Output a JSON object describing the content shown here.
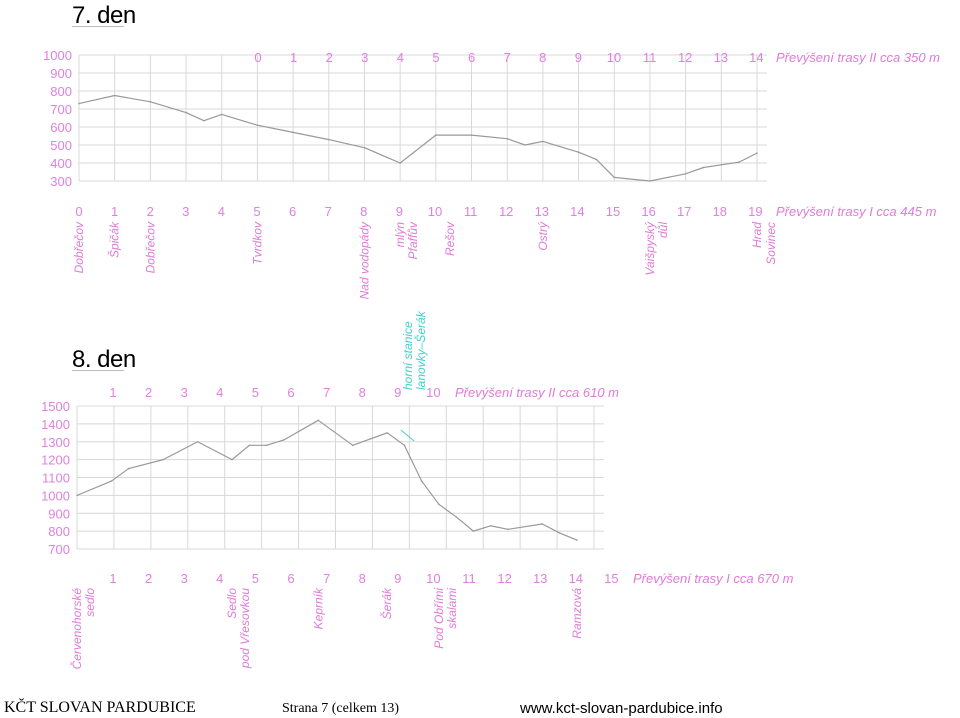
{
  "days": [
    {
      "title": "7. den"
    },
    {
      "title": "8. den"
    }
  ],
  "colors": {
    "axis_label": "#e080e0",
    "grid": "#d8d8d8",
    "profile_line": "#999999",
    "place_label": "#e07ad8",
    "teal_label": "#40d0d0"
  },
  "chart_data": [
    {
      "type": "line",
      "title": "",
      "ylabel": "",
      "ylim": [
        300,
        1000
      ],
      "yticks": [
        "300",
        "400",
        "500",
        "600",
        "700",
        "800",
        "900",
        "1000"
      ],
      "x_top_ticks": [
        "0",
        "1",
        "2",
        "3",
        "4",
        "5",
        "6",
        "7",
        "8",
        "9",
        "10",
        "11",
        "12",
        "13",
        "14"
      ],
      "x_bottom_ticks": [
        "0",
        "1",
        "2",
        "3",
        "4",
        "5",
        "6",
        "7",
        "8",
        "9",
        "10",
        "11",
        "12",
        "13",
        "14",
        "15",
        "16",
        "17",
        "18",
        "19"
      ],
      "xlim": [
        0,
        19
      ],
      "top_note": "Převýšení trasy II cca 350 m",
      "bottom_note": "Převýšení trasy I cca 445 m",
      "series": [
        {
          "x": [
            0,
            1,
            2,
            3,
            3.5,
            4,
            5,
            6,
            7,
            8,
            9,
            10,
            11,
            12,
            12.5,
            13,
            14,
            14.5,
            15,
            16,
            17,
            17.5,
            18,
            18.5,
            19
          ],
          "y": [
            730,
            775,
            740,
            680,
            635,
            670,
            610,
            570,
            530,
            485,
            400,
            555,
            555,
            535,
            500,
            520,
            460,
            420,
            320,
            300,
            340,
            375,
            390,
            405,
            455
          ]
        }
      ],
      "place_labels": [
        {
          "x": 0,
          "text": "Dobřečov"
        },
        {
          "x": 1,
          "text": "Špičák"
        },
        {
          "x": 2,
          "text": "Dobřečov"
        },
        {
          "x": 5,
          "text": "Tvrdkov"
        },
        {
          "x": 8,
          "text": "Nad vodopády"
        },
        {
          "x": 9,
          "text": "Pfaffův"
        },
        {
          "x": 9,
          "text": "mlýn"
        },
        {
          "x": 10,
          "text": "Rešov"
        },
        {
          "x": 13,
          "text": "Ostrý"
        },
        {
          "x": 16,
          "text": "Vaišpyský"
        },
        {
          "x": 16,
          "text": "důl"
        },
        {
          "x": 19,
          "text": "Hrad"
        },
        {
          "x": 19,
          "text": "Sovinec"
        }
      ]
    },
    {
      "type": "line",
      "title": "",
      "ylabel": "",
      "ylim": [
        700,
        1500
      ],
      "yticks": [
        "700",
        "800",
        "900",
        "1000",
        "1100",
        "1200",
        "1300",
        "1400",
        "1500"
      ],
      "x_top_ticks": [
        "1",
        "2",
        "3",
        "4",
        "5",
        "6",
        "7",
        "8",
        "9",
        "10"
      ],
      "x_bottom_ticks": [
        "1",
        "2",
        "3",
        "4",
        "5",
        "6",
        "7",
        "8",
        "9",
        "10",
        "11",
        "12",
        "13",
        "14",
        "15"
      ],
      "xlim": [
        0,
        15
      ],
      "top_note": "Převýšení trasy II cca 610 m",
      "bottom_note": "Převýšení trasy I cca 670 m",
      "teal_note": [
        "horní stanice",
        "lanovky–Šerák"
      ],
      "series": [
        {
          "x": [
            0,
            1,
            1.5,
            2.5,
            3.5,
            4.5,
            5,
            5.5,
            6,
            7,
            8,
            9,
            9.5,
            10,
            10.5,
            11,
            11.5,
            12,
            12.5,
            13.5,
            14,
            14.5
          ],
          "y": [
            1000,
            1080,
            1150,
            1200,
            1300,
            1200,
            1280,
            1280,
            1310,
            1420,
            1280,
            1350,
            1280,
            1080,
            950,
            880,
            800,
            830,
            810,
            840,
            790,
            750
          ]
        }
      ],
      "place_labels": [
        {
          "x": 0,
          "text": "Červenohorské"
        },
        {
          "x": 0,
          "text": "sedlo"
        },
        {
          "x": 4.5,
          "text": "Sedlo"
        },
        {
          "x": 4.5,
          "text": "pod Vřesovkou"
        },
        {
          "x": 7,
          "text": "Keprník"
        },
        {
          "x": 9,
          "text": "Šerák"
        },
        {
          "x": 10.5,
          "text": "Pod Obřími"
        },
        {
          "x": 10.5,
          "text": "skalami"
        },
        {
          "x": 14.5,
          "text": "Ramzová"
        }
      ]
    }
  ],
  "footer": {
    "org": "KČT SLOVAN PARDUBICE",
    "page": "Strana 7 (celkem 13)",
    "url": "www.kct-slovan-pardubice.info"
  }
}
